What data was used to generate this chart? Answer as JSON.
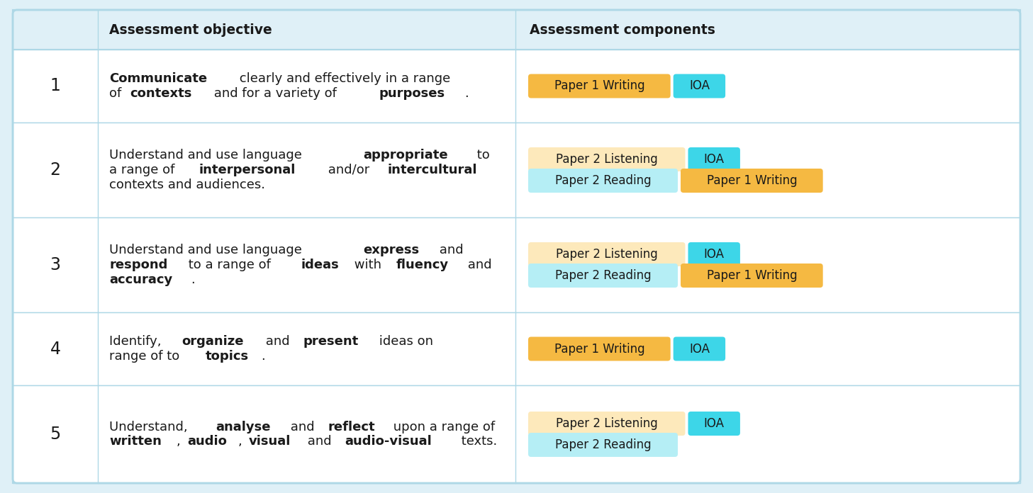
{
  "background_color": "#dff0f7",
  "table_bg": "#ffffff",
  "border_color": "#aed8e6",
  "header_fontsize": 13.5,
  "body_fontsize": 13,
  "number_fontsize": 17,
  "badge_fontsize": 12,
  "header_texts": [
    "",
    "Assessment objective",
    "Assessment components"
  ],
  "rows": [
    {
      "number": "1",
      "lines": [
        [
          {
            "text": "Communicate",
            "bold": true
          },
          {
            "text": " clearly and effectively in a range",
            "bold": false
          }
        ],
        [
          {
            "text": "of ",
            "bold": false
          },
          {
            "text": "contexts",
            "bold": true
          },
          {
            "text": " and for a variety of ",
            "bold": false
          },
          {
            "text": "purposes",
            "bold": true
          },
          {
            "text": ".",
            "bold": false
          }
        ]
      ],
      "components": [
        [
          {
            "label": "Paper 1 Writing",
            "color": "#f5b942",
            "text_color": "#1a1a1a"
          },
          {
            "label": "IOA",
            "color": "#3dd6e8",
            "text_color": "#1a1a1a"
          }
        ]
      ]
    },
    {
      "number": "2",
      "lines": [
        [
          {
            "text": "Understand and use language ",
            "bold": false
          },
          {
            "text": "appropriate",
            "bold": true
          },
          {
            "text": " to",
            "bold": false
          }
        ],
        [
          {
            "text": "a range of ",
            "bold": false
          },
          {
            "text": "interpersonal",
            "bold": true
          },
          {
            "text": " and/or ",
            "bold": false
          },
          {
            "text": "intercultural",
            "bold": true
          }
        ],
        [
          {
            "text": "contexts and audiences.",
            "bold": false
          }
        ]
      ],
      "components": [
        [
          {
            "label": "Paper 2 Listening",
            "color": "#fde9bb",
            "text_color": "#1a1a1a"
          },
          {
            "label": "IOA",
            "color": "#3dd6e8",
            "text_color": "#1a1a1a"
          }
        ],
        [
          {
            "label": "Paper 2 Reading",
            "color": "#b5eef5",
            "text_color": "#1a1a1a"
          },
          {
            "label": "Paper 1 Writing",
            "color": "#f5b942",
            "text_color": "#1a1a1a"
          }
        ]
      ]
    },
    {
      "number": "3",
      "lines": [
        [
          {
            "text": "Understand and use language ",
            "bold": false
          },
          {
            "text": "express",
            "bold": true
          },
          {
            "text": " and",
            "bold": false
          }
        ],
        [
          {
            "text": "respond",
            "bold": true
          },
          {
            "text": " to a range of ",
            "bold": false
          },
          {
            "text": "ideas",
            "bold": true
          },
          {
            "text": " with ",
            "bold": false
          },
          {
            "text": "fluency",
            "bold": true
          },
          {
            "text": " and",
            "bold": false
          }
        ],
        [
          {
            "text": "accuracy",
            "bold": true
          },
          {
            "text": ".",
            "bold": false
          }
        ]
      ],
      "components": [
        [
          {
            "label": "Paper 2 Listening",
            "color": "#fde9bb",
            "text_color": "#1a1a1a"
          },
          {
            "label": "IOA",
            "color": "#3dd6e8",
            "text_color": "#1a1a1a"
          }
        ],
        [
          {
            "label": "Paper 2 Reading",
            "color": "#b5eef5",
            "text_color": "#1a1a1a"
          },
          {
            "label": "Paper 1 Writing",
            "color": "#f5b942",
            "text_color": "#1a1a1a"
          }
        ]
      ]
    },
    {
      "number": "4",
      "lines": [
        [
          {
            "text": "Identify, ",
            "bold": false
          },
          {
            "text": "organize",
            "bold": true
          },
          {
            "text": " and ",
            "bold": false
          },
          {
            "text": "present",
            "bold": true
          },
          {
            "text": " ideas on",
            "bold": false
          }
        ],
        [
          {
            "text": "range of to ",
            "bold": false
          },
          {
            "text": "topics",
            "bold": true
          },
          {
            "text": ".",
            "bold": false
          }
        ]
      ],
      "components": [
        [
          {
            "label": "Paper 1 Writing",
            "color": "#f5b942",
            "text_color": "#1a1a1a"
          },
          {
            "label": "IOA",
            "color": "#3dd6e8",
            "text_color": "#1a1a1a"
          }
        ]
      ]
    },
    {
      "number": "5",
      "lines": [
        [
          {
            "text": "Understand, ",
            "bold": false
          },
          {
            "text": "analyse",
            "bold": true
          },
          {
            "text": " and ",
            "bold": false
          },
          {
            "text": "reflect",
            "bold": true
          },
          {
            "text": " upon a range of",
            "bold": false
          }
        ],
        [
          {
            "text": "written",
            "bold": true
          },
          {
            "text": ", ",
            "bold": false
          },
          {
            "text": "audio",
            "bold": true
          },
          {
            "text": ", ",
            "bold": false
          },
          {
            "text": "visual",
            "bold": true
          },
          {
            "text": " and ",
            "bold": false
          },
          {
            "text": "audio-visual",
            "bold": true
          },
          {
            "text": " texts.",
            "bold": false
          }
        ]
      ],
      "components": [
        [
          {
            "label": "Paper 2 Listening",
            "color": "#fde9bb",
            "text_color": "#1a1a1a"
          },
          {
            "label": "IOA",
            "color": "#3dd6e8",
            "text_color": "#1a1a1a"
          }
        ],
        [
          {
            "label": "Paper 2 Reading",
            "color": "#b5eef5",
            "text_color": "#1a1a1a"
          }
        ]
      ]
    }
  ]
}
